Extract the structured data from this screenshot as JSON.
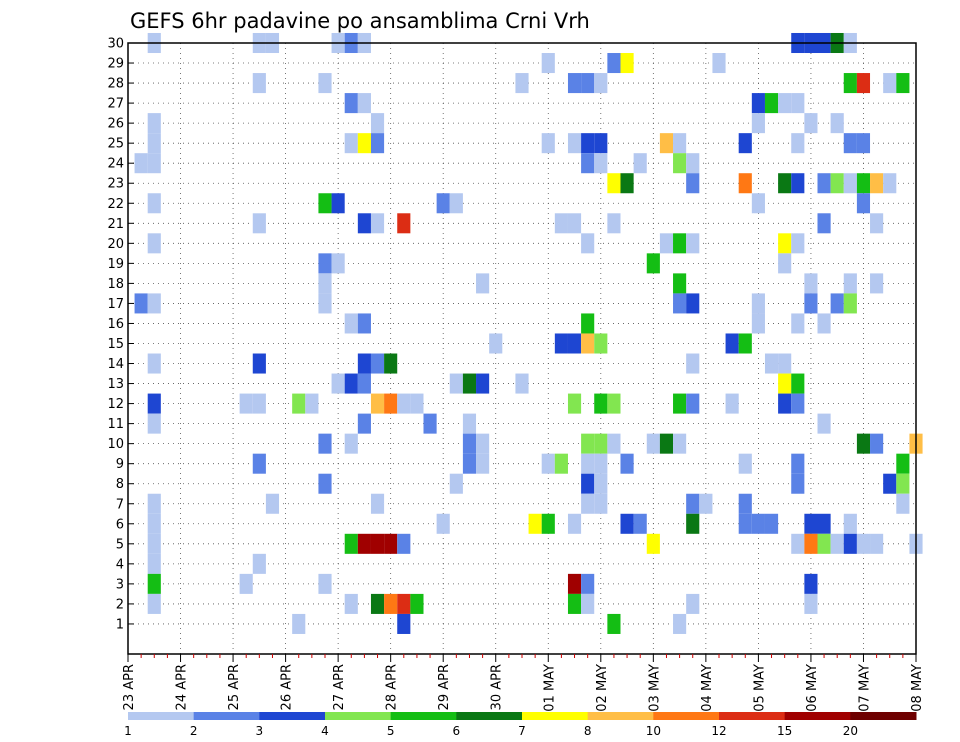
{
  "chart_data": {
    "type": "heatmap",
    "title": "GEFS 6hr padavine po ansamblima Crni Vrh",
    "xlabel": "",
    "ylabel": "",
    "x_tick_labels": [
      "23 APR",
      "24 APR",
      "25 APR",
      "26 APR",
      "27 APR",
      "28 APR",
      "29 APR",
      "30 APR",
      "01 MAY",
      "02 MAY",
      "03 MAY",
      "04 MAY",
      "05 MAY",
      "06 MAY",
      "07 MAY",
      "08 MAY"
    ],
    "y_tick_labels": [
      "1",
      "2",
      "3",
      "4",
      "5",
      "6",
      "7",
      "8",
      "9",
      "10",
      "11",
      "12",
      "13",
      "14",
      "15",
      "16",
      "17",
      "18",
      "19",
      "20",
      "21",
      "22",
      "23",
      "24",
      "25",
      "26",
      "27",
      "28",
      "29",
      "30"
    ],
    "xlim_steps": [
      0,
      60
    ],
    "ylim_members": [
      0,
      30
    ],
    "time_step_hours": 6,
    "grid": true,
    "legend_placement": "bottom",
    "colorbar_levels": [
      1,
      2,
      3,
      4,
      5,
      6,
      7,
      8,
      10,
      12,
      15,
      20
    ],
    "colorbar_colors": [
      "#b4c8f0",
      "#5a82e6",
      "#1e46d2",
      "#82e650",
      "#14be14",
      "#0a7814",
      "#ffff00",
      "#ffbe46",
      "#ff7814",
      "#dc2d14",
      "#a00000",
      "#6e0000"
    ],
    "cell_format": "[time_step_index, member, color_class_index]",
    "cells": [
      [
        2,
        30,
        0
      ],
      [
        10,
        30,
        0
      ],
      [
        11,
        30,
        0
      ],
      [
        16,
        30,
        0
      ],
      [
        17,
        30,
        1
      ],
      [
        18,
        30,
        0
      ],
      [
        51,
        30,
        2
      ],
      [
        52,
        30,
        2
      ],
      [
        53,
        30,
        2
      ],
      [
        54,
        30,
        5
      ],
      [
        55,
        30,
        0
      ],
      [
        32,
        29,
        0
      ],
      [
        37,
        29,
        1
      ],
      [
        38,
        29,
        6
      ],
      [
        45,
        29,
        0
      ],
      [
        10,
        28,
        0
      ],
      [
        15,
        28,
        0
      ],
      [
        30,
        28,
        0
      ],
      [
        34,
        28,
        1
      ],
      [
        35,
        28,
        1
      ],
      [
        36,
        28,
        0
      ],
      [
        55,
        28,
        4
      ],
      [
        56,
        28,
        9
      ],
      [
        58,
        28,
        0
      ],
      [
        59,
        28,
        4
      ],
      [
        17,
        27,
        1
      ],
      [
        18,
        27,
        0
      ],
      [
        48,
        27,
        2
      ],
      [
        49,
        27,
        4
      ],
      [
        50,
        27,
        0
      ],
      [
        51,
        27,
        0
      ],
      [
        2,
        26,
        0
      ],
      [
        19,
        26,
        0
      ],
      [
        48,
        26,
        0
      ],
      [
        52,
        26,
        0
      ],
      [
        54,
        26,
        0
      ],
      [
        2,
        25,
        0
      ],
      [
        17,
        25,
        0
      ],
      [
        18,
        25,
        6
      ],
      [
        19,
        25,
        1
      ],
      [
        32,
        25,
        0
      ],
      [
        34,
        25,
        0
      ],
      [
        35,
        25,
        2
      ],
      [
        36,
        25,
        2
      ],
      [
        41,
        25,
        7
      ],
      [
        42,
        25,
        0
      ],
      [
        47,
        25,
        2
      ],
      [
        51,
        25,
        0
      ],
      [
        55,
        25,
        1
      ],
      [
        56,
        25,
        1
      ],
      [
        1,
        24,
        0
      ],
      [
        2,
        24,
        0
      ],
      [
        35,
        24,
        1
      ],
      [
        36,
        24,
        0
      ],
      [
        39,
        24,
        0
      ],
      [
        42,
        24,
        3
      ],
      [
        43,
        24,
        0
      ],
      [
        37,
        23,
        6
      ],
      [
        38,
        23,
        5
      ],
      [
        43,
        23,
        1
      ],
      [
        47,
        23,
        8
      ],
      [
        50,
        23,
        5
      ],
      [
        51,
        23,
        2
      ],
      [
        53,
        23,
        1
      ],
      [
        54,
        23,
        3
      ],
      [
        55,
        23,
        0
      ],
      [
        56,
        23,
        4
      ],
      [
        57,
        23,
        7
      ],
      [
        58,
        23,
        0
      ],
      [
        2,
        22,
        0
      ],
      [
        15,
        22,
        4
      ],
      [
        16,
        22,
        2
      ],
      [
        24,
        22,
        1
      ],
      [
        25,
        22,
        0
      ],
      [
        48,
        22,
        0
      ],
      [
        56,
        22,
        1
      ],
      [
        10,
        21,
        0
      ],
      [
        18,
        21,
        2
      ],
      [
        19,
        21,
        0
      ],
      [
        21,
        21,
        9
      ],
      [
        33,
        21,
        0
      ],
      [
        34,
        21,
        0
      ],
      [
        37,
        21,
        0
      ],
      [
        53,
        21,
        1
      ],
      [
        57,
        21,
        0
      ],
      [
        2,
        20,
        0
      ],
      [
        35,
        20,
        0
      ],
      [
        41,
        20,
        0
      ],
      [
        42,
        20,
        4
      ],
      [
        43,
        20,
        0
      ],
      [
        50,
        20,
        6
      ],
      [
        51,
        20,
        0
      ],
      [
        15,
        19,
        1
      ],
      [
        16,
        19,
        0
      ],
      [
        40,
        19,
        4
      ],
      [
        50,
        19,
        0
      ],
      [
        15,
        18,
        0
      ],
      [
        27,
        18,
        0
      ],
      [
        42,
        18,
        4
      ],
      [
        52,
        18,
        0
      ],
      [
        55,
        18,
        0
      ],
      [
        57,
        18,
        0
      ],
      [
        1,
        17,
        1
      ],
      [
        2,
        17,
        0
      ],
      [
        15,
        17,
        0
      ],
      [
        42,
        17,
        1
      ],
      [
        43,
        17,
        2
      ],
      [
        48,
        17,
        0
      ],
      [
        52,
        17,
        1
      ],
      [
        54,
        17,
        1
      ],
      [
        55,
        17,
        3
      ],
      [
        17,
        16,
        0
      ],
      [
        18,
        16,
        1
      ],
      [
        35,
        16,
        4
      ],
      [
        48,
        16,
        0
      ],
      [
        51,
        16,
        0
      ],
      [
        53,
        16,
        0
      ],
      [
        28,
        15,
        0
      ],
      [
        33,
        15,
        2
      ],
      [
        34,
        15,
        2
      ],
      [
        35,
        15,
        7
      ],
      [
        36,
        15,
        3
      ],
      [
        46,
        15,
        2
      ],
      [
        47,
        15,
        4
      ],
      [
        2,
        14,
        0
      ],
      [
        10,
        14,
        2
      ],
      [
        18,
        14,
        2
      ],
      [
        19,
        14,
        1
      ],
      [
        20,
        14,
        5
      ],
      [
        43,
        14,
        0
      ],
      [
        49,
        14,
        0
      ],
      [
        50,
        14,
        0
      ],
      [
        16,
        13,
        0
      ],
      [
        17,
        13,
        2
      ],
      [
        18,
        13,
        1
      ],
      [
        25,
        13,
        0
      ],
      [
        26,
        13,
        5
      ],
      [
        27,
        13,
        2
      ],
      [
        30,
        13,
        0
      ],
      [
        50,
        13,
        6
      ],
      [
        51,
        13,
        4
      ],
      [
        2,
        12,
        2
      ],
      [
        9,
        12,
        0
      ],
      [
        10,
        12,
        0
      ],
      [
        13,
        12,
        3
      ],
      [
        14,
        12,
        0
      ],
      [
        19,
        12,
        7
      ],
      [
        20,
        12,
        8
      ],
      [
        21,
        12,
        0
      ],
      [
        22,
        12,
        0
      ],
      [
        34,
        12,
        3
      ],
      [
        36,
        12,
        4
      ],
      [
        37,
        12,
        3
      ],
      [
        42,
        12,
        4
      ],
      [
        43,
        12,
        1
      ],
      [
        46,
        12,
        0
      ],
      [
        50,
        12,
        2
      ],
      [
        51,
        12,
        1
      ],
      [
        2,
        11,
        0
      ],
      [
        18,
        11,
        1
      ],
      [
        23,
        11,
        1
      ],
      [
        26,
        11,
        0
      ],
      [
        53,
        11,
        0
      ],
      [
        15,
        10,
        1
      ],
      [
        17,
        10,
        0
      ],
      [
        26,
        10,
        1
      ],
      [
        27,
        10,
        0
      ],
      [
        35,
        10,
        3
      ],
      [
        36,
        10,
        3
      ],
      [
        37,
        10,
        0
      ],
      [
        40,
        10,
        0
      ],
      [
        41,
        10,
        5
      ],
      [
        42,
        10,
        0
      ],
      [
        56,
        10,
        5
      ],
      [
        57,
        10,
        1
      ],
      [
        60,
        10,
        7
      ],
      [
        10,
        9,
        1
      ],
      [
        26,
        9,
        1
      ],
      [
        27,
        9,
        0
      ],
      [
        32,
        9,
        0
      ],
      [
        33,
        9,
        3
      ],
      [
        35,
        9,
        0
      ],
      [
        36,
        9,
        0
      ],
      [
        38,
        9,
        1
      ],
      [
        47,
        9,
        0
      ],
      [
        51,
        9,
        1
      ],
      [
        59,
        9,
        4
      ],
      [
        15,
        8,
        1
      ],
      [
        25,
        8,
        0
      ],
      [
        35,
        8,
        2
      ],
      [
        36,
        8,
        0
      ],
      [
        51,
        8,
        1
      ],
      [
        58,
        8,
        2
      ],
      [
        59,
        8,
        3
      ],
      [
        2,
        7,
        0
      ],
      [
        11,
        7,
        0
      ],
      [
        19,
        7,
        0
      ],
      [
        35,
        7,
        0
      ],
      [
        36,
        7,
        0
      ],
      [
        43,
        7,
        1
      ],
      [
        44,
        7,
        0
      ],
      [
        47,
        7,
        1
      ],
      [
        59,
        7,
        0
      ],
      [
        2,
        6,
        0
      ],
      [
        24,
        6,
        0
      ],
      [
        31,
        6,
        6
      ],
      [
        32,
        6,
        4
      ],
      [
        34,
        6,
        0
      ],
      [
        38,
        6,
        2
      ],
      [
        39,
        6,
        1
      ],
      [
        43,
        6,
        5
      ],
      [
        47,
        6,
        1
      ],
      [
        48,
        6,
        1
      ],
      [
        49,
        6,
        1
      ],
      [
        52,
        6,
        2
      ],
      [
        53,
        6,
        2
      ],
      [
        55,
        6,
        0
      ],
      [
        2,
        5,
        0
      ],
      [
        17,
        5,
        4
      ],
      [
        18,
        5,
        10
      ],
      [
        19,
        5,
        10
      ],
      [
        20,
        5,
        10
      ],
      [
        21,
        5,
        1
      ],
      [
        40,
        5,
        6
      ],
      [
        51,
        5,
        0
      ],
      [
        52,
        5,
        8
      ],
      [
        53,
        5,
        3
      ],
      [
        54,
        5,
        0
      ],
      [
        55,
        5,
        2
      ],
      [
        56,
        5,
        0
      ],
      [
        57,
        5,
        0
      ],
      [
        60,
        5,
        0
      ],
      [
        2,
        4,
        0
      ],
      [
        10,
        4,
        0
      ],
      [
        2,
        3,
        4
      ],
      [
        9,
        3,
        0
      ],
      [
        15,
        3,
        0
      ],
      [
        34,
        3,
        10
      ],
      [
        35,
        3,
        1
      ],
      [
        52,
        3,
        2
      ],
      [
        2,
        2,
        0
      ],
      [
        17,
        2,
        0
      ],
      [
        19,
        2,
        5
      ],
      [
        20,
        2,
        8
      ],
      [
        21,
        2,
        9
      ],
      [
        22,
        2,
        4
      ],
      [
        34,
        2,
        4
      ],
      [
        35,
        2,
        0
      ],
      [
        43,
        2,
        0
      ],
      [
        52,
        2,
        0
      ],
      [
        13,
        1,
        0
      ],
      [
        21,
        1,
        2
      ],
      [
        37,
        1,
        4
      ],
      [
        42,
        1,
        0
      ]
    ]
  }
}
